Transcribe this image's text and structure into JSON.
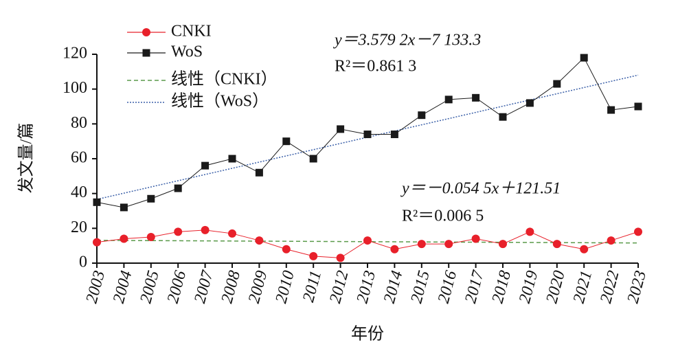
{
  "chart_data": {
    "type": "line",
    "categories": [
      "2003",
      "2004",
      "2005",
      "2006",
      "2007",
      "2008",
      "2009",
      "2010",
      "2011",
      "2012",
      "2013",
      "2014",
      "2015",
      "2016",
      "2017",
      "2018",
      "2019",
      "2020",
      "2021",
      "2022",
      "2023"
    ],
    "series": [
      {
        "name": "CNKI",
        "color": "#e8202a",
        "marker": "circle",
        "values": [
          12,
          14,
          15,
          18,
          19,
          17,
          13,
          8,
          4,
          3,
          13,
          8,
          11,
          11,
          14,
          11,
          18,
          11,
          8,
          13,
          18
        ],
        "trend": {
          "name": "线性（CNKI）",
          "color": "#5a9a4a",
          "dash": "dashed"
        }
      },
      {
        "name": "WoS",
        "color": "#1a1a1a",
        "marker": "square",
        "values": [
          35,
          32,
          37,
          43,
          56,
          60,
          52,
          70,
          60,
          77,
          74,
          74,
          85,
          94,
          95,
          84,
          92,
          103,
          118,
          88,
          90
        ],
        "trend": {
          "name": "线性（WoS）",
          "color": "#3a5fa8",
          "dash": "dotted"
        }
      }
    ],
    "ylim": [
      0,
      120
    ],
    "yticks": [
      0,
      20,
      40,
      60,
      80,
      100,
      120
    ],
    "ylabel": "发文量/篇",
    "xlabel": "年份",
    "annotations": [
      "y＝3.579 2x－7 133.3",
      "R²＝0.861 3",
      "y＝－0.054 5x＋121.51",
      "R²＝0.006 5"
    ],
    "legend": "upper left",
    "grid": false
  }
}
